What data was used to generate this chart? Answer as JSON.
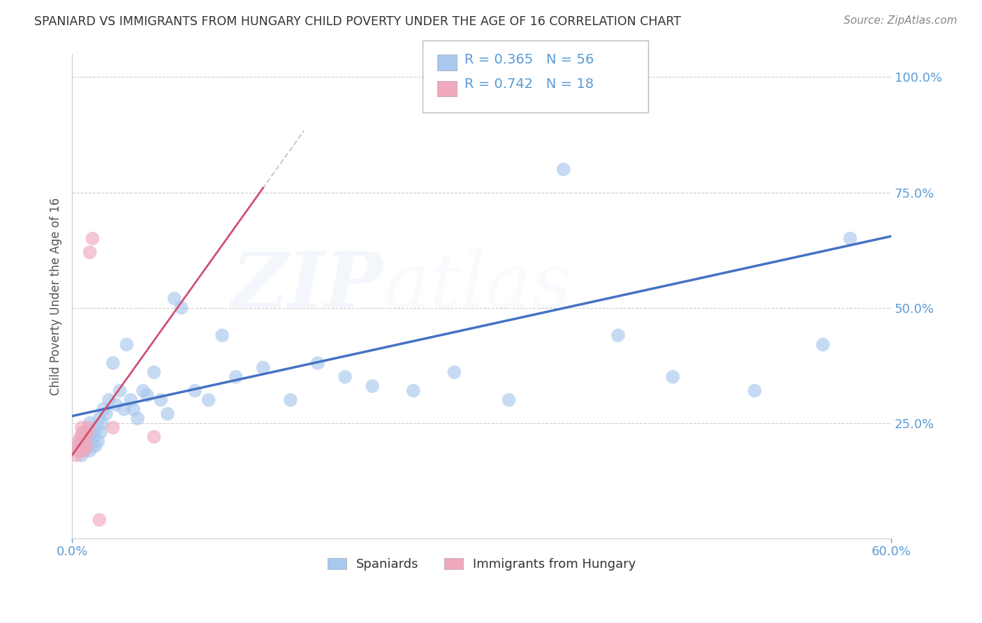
{
  "title": "SPANIARD VS IMMIGRANTS FROM HUNGARY CHILD POVERTY UNDER THE AGE OF 16 CORRELATION CHART",
  "source": "Source: ZipAtlas.com",
  "ylabel": "Child Poverty Under the Age of 16",
  "legend_label1": "Spaniards",
  "legend_label2": "Immigrants from Hungary",
  "r1": 0.365,
  "n1": 56,
  "r2": 0.742,
  "n2": 18,
  "blue_color": "#A8C8EE",
  "pink_color": "#F0A8BC",
  "trendline_blue": "#4472C4",
  "trendline_pink": "#D05070",
  "blue_trend_x0": 0.0,
  "blue_trend_y0": 0.265,
  "blue_trend_x1": 0.6,
  "blue_trend_y1": 0.655,
  "pink_trend_x0": 0.0,
  "pink_trend_y0": 0.18,
  "pink_trend_x1": 0.14,
  "pink_trend_y1": 0.76,
  "xlim": [
    0.0,
    0.6
  ],
  "ylim": [
    0.0,
    1.05
  ],
  "yticks": [
    0.0,
    0.25,
    0.5,
    0.75,
    1.0
  ],
  "ytick_labels": [
    "",
    "25.0%",
    "50.0%",
    "75.0%",
    "100.0%"
  ],
  "xtick_labels": [
    "0.0%",
    "60.0%"
  ],
  "blue_x": [
    0.005,
    0.007,
    0.008,
    0.009,
    0.01,
    0.01,
    0.011,
    0.012,
    0.013,
    0.013,
    0.014,
    0.014,
    0.015,
    0.016,
    0.017,
    0.018,
    0.019,
    0.02,
    0.021,
    0.022,
    0.023,
    0.025,
    0.027,
    0.03,
    0.032,
    0.035,
    0.038,
    0.04,
    0.043,
    0.045,
    0.048,
    0.052,
    0.055,
    0.06,
    0.065,
    0.07,
    0.075,
    0.08,
    0.09,
    0.1,
    0.11,
    0.12,
    0.14,
    0.16,
    0.18,
    0.2,
    0.22,
    0.25,
    0.28,
    0.32,
    0.36,
    0.4,
    0.44,
    0.5,
    0.55,
    0.57
  ],
  "blue_y": [
    0.2,
    0.18,
    0.22,
    0.19,
    0.21,
    0.23,
    0.2,
    0.22,
    0.19,
    0.25,
    0.21,
    0.2,
    0.23,
    0.22,
    0.2,
    0.24,
    0.21,
    0.26,
    0.23,
    0.25,
    0.28,
    0.27,
    0.3,
    0.38,
    0.29,
    0.32,
    0.28,
    0.42,
    0.3,
    0.28,
    0.26,
    0.32,
    0.31,
    0.36,
    0.3,
    0.27,
    0.52,
    0.5,
    0.32,
    0.3,
    0.44,
    0.35,
    0.37,
    0.3,
    0.38,
    0.35,
    0.33,
    0.32,
    0.36,
    0.3,
    0.8,
    0.44,
    0.35,
    0.32,
    0.42,
    0.65
  ],
  "pink_x": [
    0.003,
    0.004,
    0.005,
    0.005,
    0.006,
    0.007,
    0.007,
    0.008,
    0.009,
    0.01,
    0.011,
    0.011,
    0.012,
    0.013,
    0.015,
    0.02,
    0.03,
    0.06
  ],
  "pink_y": [
    0.18,
    0.2,
    0.19,
    0.21,
    0.22,
    0.2,
    0.24,
    0.23,
    0.19,
    0.22,
    0.2,
    0.23,
    0.24,
    0.62,
    0.65,
    0.04,
    0.24,
    0.22
  ]
}
